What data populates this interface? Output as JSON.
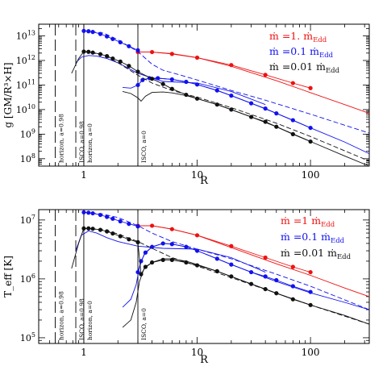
{
  "chart_data": [
    {
      "type": "line",
      "panel": "top",
      "ylabel": "g  [GM/R³×H]",
      "xlabel": "R",
      "xscale": "log",
      "yscale": "log",
      "xlim": [
        0.4,
        330
      ],
      "ylim": [
        50000000.0,
        30000000000000.0
      ],
      "x_ticks": [
        1,
        10,
        100
      ],
      "x_tick_labels": [
        "1",
        "10",
        "100"
      ],
      "y_ticks": [
        100000000.0,
        1000000000.0,
        10000000000.0,
        100000000000.0,
        1000000000000.0,
        10000000000000.0
      ],
      "y_tick_labels": [
        [
          "10",
          "8"
        ],
        [
          "10",
          "9"
        ],
        [
          "10",
          "10"
        ],
        [
          "10",
          "11"
        ],
        [
          "10",
          "12"
        ],
        [
          "10",
          "13"
        ]
      ],
      "legend": [
        {
          "prefix": "ṁ  =1. ṁ",
          "sub": "Edd",
          "color": "#ee1111"
        },
        {
          "prefix": "ṁ  =0.1 ṁ",
          "sub": "Edd",
          "color": "#1111ee"
        },
        {
          "prefix": "ṁ  =0.01 ṁ",
          "sub": "Edd",
          "color": "#111111"
        }
      ],
      "legend_position": "top-right",
      "vlines": [
        {
          "x": 0.56,
          "label": "horizon, a=0.98",
          "style": "dashed"
        },
        {
          "x": 0.85,
          "label": "ISCO, a=0.98",
          "style": "dashed"
        },
        {
          "x": 1.0,
          "label": "horizon, a=0",
          "style": "solid"
        },
        {
          "x": 3.0,
          "label": "ISCO, a=0",
          "style": "solid"
        }
      ],
      "series": [
        {
          "color": "#ee1111",
          "dash": false,
          "points": false,
          "x": [
            3,
            4,
            6,
            10,
            20,
            50,
            100,
            200,
            330
          ],
          "y": [
            2200000000000.0,
            2200000000000.0,
            1900000000000.0,
            1300000000000.0,
            580000000000.0,
            150000000000.0,
            49000000000.0,
            16000000000.0,
            7000000000.0
          ]
        },
        {
          "color": "#ee1111",
          "dash": false,
          "points": true,
          "x": [
            3,
            4,
            6,
            10,
            20,
            40,
            70,
            100
          ],
          "y": [
            2200000000000.0,
            2200000000000.0,
            1850000000000.0,
            1300000000000.0,
            650000000000.0,
            260000000000.0,
            120000000000.0,
            75000000000.0
          ]
        },
        {
          "color": "#1111ee",
          "dash": false,
          "points": false,
          "x": [
            0.85,
            0.95,
            1.1,
            1.3,
            1.6,
            2,
            3,
            5,
            10,
            20,
            40
          ],
          "y": [
            800000000000.0,
            1350000000000.0,
            1600000000000.0,
            1500000000000.0,
            1200000000000.0,
            800000000000.0,
            300000000000.0,
            140000000000.0,
            120000000000.0,
            55000000000.0,
            16000000000.0
          ]
        },
        {
          "color": "#1111ee",
          "dash": true,
          "points": false,
          "x": [
            1,
            1.5,
            2,
            3,
            4,
            5,
            7,
            10,
            20,
            40,
            100,
            330
          ],
          "y": [
            16000000000000.0,
            13000000000000.0,
            7000000000000.0,
            2300000000000.0,
            700000000000.0,
            400000000000.0,
            260000000000.0,
            160000000000.0,
            60000000000.0,
            24000000000.0,
            6500000000.0,
            1100000000.0
          ]
        },
        {
          "color": "#1111ee",
          "dash": false,
          "points": true,
          "x": [
            1,
            1.1,
            1.2,
            1.4,
            1.6,
            1.8,
            2.1,
            2.5,
            3
          ],
          "y": [
            16000000000000.0,
            15500000000000.0,
            14500000000000.0,
            12000000000000.0,
            9500000000000.0,
            7500000000000.0,
            5500000000000.0,
            3800000000000.0,
            2600000000000.0
          ]
        },
        {
          "color": "#1111ee",
          "dash": false,
          "points": false,
          "x": [
            2.2,
            2.6,
            3,
            3.3,
            3.8,
            4.5,
            6,
            8,
            10,
            15,
            20,
            30,
            50,
            100,
            200,
            330
          ],
          "y": [
            80000000000.0,
            75000000000.0,
            100000000000.0,
            160000000000.0,
            190000000000.0,
            190000000000.0,
            170000000000.0,
            135000000000.0,
            105000000000.0,
            60000000000.0,
            37000000000.0,
            18000000000.0,
            7000000000.0,
            1800000000.0,
            480000000.0,
            160000000.0
          ]
        },
        {
          "color": "#1111ee",
          "dash": false,
          "points": true,
          "x": [
            3,
            3.3,
            3.8,
            4.5,
            6,
            8,
            10,
            15,
            20,
            30,
            40,
            50,
            70,
            100
          ],
          "y": [
            100000000000.0,
            160000000000.0,
            190000000000.0,
            190000000000.0,
            170000000000.0,
            135000000000.0,
            105000000000.0,
            60000000000.0,
            37000000000.0,
            18000000000.0,
            11000000000.0,
            7000000000.0,
            3700000000.0,
            1800000000.0
          ]
        },
        {
          "color": "#111111",
          "dash": false,
          "points": false,
          "x": [
            2.2,
            2.6,
            3,
            3.2,
            3.5,
            4,
            5,
            6,
            8,
            10,
            15,
            20,
            30,
            50,
            100,
            200,
            330
          ],
          "y": [
            55000000000.0,
            45000000000.0,
            30000000000.0,
            22000000000.0,
            35000000000.0,
            50000000000.0,
            52000000000.0,
            48000000000.0,
            37000000000.0,
            28000000000.0,
            16000000000.0,
            10000000000.0,
            5000000000.0,
            2000000000.0,
            500000000.0,
            130000000.0,
            50000000.0
          ]
        },
        {
          "color": "#111111",
          "dash": true,
          "points": false,
          "x": [
            1,
            1.5,
            2,
            3,
            4,
            6,
            10,
            20,
            50,
            100,
            330
          ],
          "y": [
            2300000000000.0,
            1700000000000.0,
            800000000000.0,
            250000000000.0,
            120000000000.0,
            60000000000.0,
            32000000000.0,
            12000000000.0,
            2800000000.0,
            800000000.0,
            80000000.0
          ]
        },
        {
          "color": "#111111",
          "dash": false,
          "points": true,
          "x": [
            1,
            1.1,
            1.2,
            1.4,
            1.6,
            1.8,
            2.1,
            2.5,
            3,
            4,
            5,
            6,
            8,
            10,
            15,
            20,
            30,
            40,
            50,
            70,
            100
          ],
          "y": [
            2300000000000.0,
            2250000000000.0,
            2100000000000.0,
            1800000000000.0,
            1500000000000.0,
            1200000000000.0,
            900000000000.0,
            600000000000.0,
            350000000000.0,
            180000000000.0,
            110000000000.0,
            70000000000.0,
            40000000000.0,
            28000000000.0,
            16000000000.0,
            10000000000.0,
            5000000000.0,
            3200000000.0,
            2000000000.0,
            1000000000.0,
            500000000.0
          ]
        },
        {
          "color": "#111111",
          "dash": false,
          "points": false,
          "x": [
            0.78,
            0.9,
            1.0
          ],
          "y": [
            300000000000.0,
            1200000000000.0,
            2300000000000.0
          ]
        }
      ]
    },
    {
      "type": "line",
      "panel": "bottom",
      "ylabel": "T_eff  [K]",
      "xlabel": "R",
      "xscale": "log",
      "yscale": "log",
      "xlim": [
        0.4,
        330
      ],
      "ylim": [
        80000.0,
        15000000.0
      ],
      "x_ticks": [
        1,
        10,
        100
      ],
      "x_tick_labels": [
        "1",
        "10",
        "100"
      ],
      "y_ticks": [
        100000.0,
        1000000.0,
        10000000.0
      ],
      "y_tick_labels": [
        [
          "10",
          "5"
        ],
        [
          "10",
          "6"
        ],
        [
          "10",
          "7"
        ]
      ],
      "legend": [
        {
          "prefix": "ṁ  =1  ṁ",
          "sub": "Edd",
          "color": "#ee1111"
        },
        {
          "prefix": "ṁ  =0.1  ṁ",
          "sub": "Edd",
          "color": "#1111ee"
        },
        {
          "prefix": "ṁ  =0.01  ṁ",
          "sub": "Edd",
          "color": "#111111"
        }
      ],
      "legend_position": "top-right",
      "vlines": [
        {
          "x": 0.56,
          "label": "horizon, a=0.98",
          "style": "dashed"
        },
        {
          "x": 0.85,
          "label": "ISCO, a=0.98",
          "style": "dashed"
        },
        {
          "x": 1.0,
          "label": "horizon, a=0",
          "style": "solid"
        },
        {
          "x": 3.0,
          "label": "ISCO, a=0",
          "style": "solid"
        }
      ],
      "series": [
        {
          "color": "#ee1111",
          "dash": false,
          "points": false,
          "x": [
            3,
            4,
            6,
            10,
            20,
            50,
            100,
            200,
            330
          ],
          "y": [
            8000000.0,
            8000000.0,
            7000000.0,
            5500000.0,
            3400000.0,
            1800000.0,
            1150000.0,
            700000.0,
            500000.0
          ]
        },
        {
          "color": "#ee1111",
          "dash": false,
          "points": true,
          "x": [
            3,
            4,
            6,
            10,
            20,
            40,
            70,
            100
          ],
          "y": [
            8000000.0,
            8000000.0,
            7000000.0,
            5500000.0,
            3600000.0,
            2300000.0,
            1600000.0,
            1300000.0
          ]
        },
        {
          "color": "#1111ee",
          "dash": false,
          "points": false,
          "x": [
            0.85,
            0.95,
            1.1,
            1.3,
            1.6,
            2,
            3,
            5,
            10,
            20,
            40
          ],
          "y": [
            3000000.0,
            5500000.0,
            6500000.0,
            6000000.0,
            5000000.0,
            4300000.0,
            3600000.0,
            3300000.0,
            3200000.0,
            2300000.0,
            1300000.0
          ]
        },
        {
          "color": "#1111ee",
          "dash": true,
          "points": false,
          "x": [
            1,
            1.5,
            2,
            3,
            4,
            6,
            10,
            20,
            50,
            100,
            330
          ],
          "y": [
            13500000.0,
            12500000.0,
            11000000.0,
            8000000.0,
            6000000.0,
            4300000.0,
            3200000.0,
            2200000.0,
            1200000.0,
            750000.0,
            300000.0
          ]
        },
        {
          "color": "#1111ee",
          "dash": false,
          "points": true,
          "x": [
            1,
            1.1,
            1.2,
            1.4,
            1.6,
            1.8,
            2.1,
            2.5,
            3
          ],
          "y": [
            13500000.0,
            13300000.0,
            13000000.0,
            12200000.0,
            11300000.0,
            10500000.0,
            9500000.0,
            8600000.0,
            7800000.0
          ]
        },
        {
          "color": "#1111ee",
          "dash": false,
          "points": false,
          "x": [
            2.2,
            2.6,
            2.9,
            3.1,
            3.4,
            4,
            5,
            6,
            8,
            10,
            15,
            20,
            30,
            50,
            100,
            200,
            330
          ],
          "y": [
            330000.0,
            450000.0,
            800000.0,
            1600000.0,
            2600000.0,
            3500000.0,
            4000000.0,
            3900000.0,
            3500000.0,
            3000000.0,
            2200000.0,
            1750000.0,
            1300000.0,
            900000.0,
            580000.0,
            400000.0,
            300000.0
          ]
        },
        {
          "color": "#1111ee",
          "dash": false,
          "points": true,
          "x": [
            3,
            3.2,
            3.5,
            4,
            5,
            6,
            8,
            10,
            15,
            20,
            30,
            40,
            50,
            70,
            100
          ],
          "y": [
            1300000.0,
            2000000.0,
            2800000.0,
            3500000.0,
            4000000.0,
            3900000.0,
            3500000.0,
            3000000.0,
            2200000.0,
            1750000.0,
            1300000.0,
            1100000.0,
            950000.0,
            750000.0,
            600000.0
          ]
        },
        {
          "color": "#111111",
          "dash": false,
          "points": false,
          "x": [
            2.2,
            2.6,
            2.9,
            3.1,
            3.4,
            4,
            5,
            6,
            8,
            10,
            15,
            20,
            30,
            50,
            100,
            200,
            330
          ],
          "y": [
            150000.0,
            200000.0,
            400000.0,
            900000.0,
            1500000.0,
            1900000.0,
            2200000.0,
            2200000.0,
            2000000.0,
            1750000.0,
            1350000.0,
            1100000.0,
            820000.0,
            570000.0,
            360000.0,
            240000.0,
            170000.0
          ]
        },
        {
          "color": "#111111",
          "dash": true,
          "points": false,
          "x": [
            1,
            1.5,
            2,
            3,
            4,
            6,
            10,
            20,
            50,
            100,
            330
          ],
          "y": [
            7200000.0,
            6800000.0,
            5800000.0,
            4300000.0,
            3300000.0,
            2300000.0,
            1650000.0,
            1050000.0,
            570000.0,
            360000.0,
            170000.0
          ]
        },
        {
          "color": "#111111",
          "dash": false,
          "points": true,
          "x": [
            1,
            1.1,
            1.2,
            1.4,
            1.6,
            1.8,
            2.1,
            2.5,
            3,
            3.2,
            3.5,
            4,
            5,
            6,
            8,
            10,
            15,
            20,
            30,
            40,
            50,
            70,
            100
          ],
          "y": [
            7200000.0,
            7200000.0,
            7100000.0,
            6800000.0,
            6400000.0,
            5900000.0,
            5300000.0,
            4700000.0,
            4200000.0,
            1200000.0,
            1600000.0,
            1900000.0,
            2100000.0,
            2100000.0,
            1900000.0,
            1700000.0,
            1350000.0,
            1100000.0,
            820000.0,
            670000.0,
            570000.0,
            450000.0,
            360000.0
          ]
        },
        {
          "color": "#111111",
          "dash": false,
          "points": false,
          "x": [
            0.78,
            0.9,
            1.0
          ],
          "y": [
            1500000.0,
            4000000.0,
            7200000.0
          ]
        }
      ]
    }
  ]
}
